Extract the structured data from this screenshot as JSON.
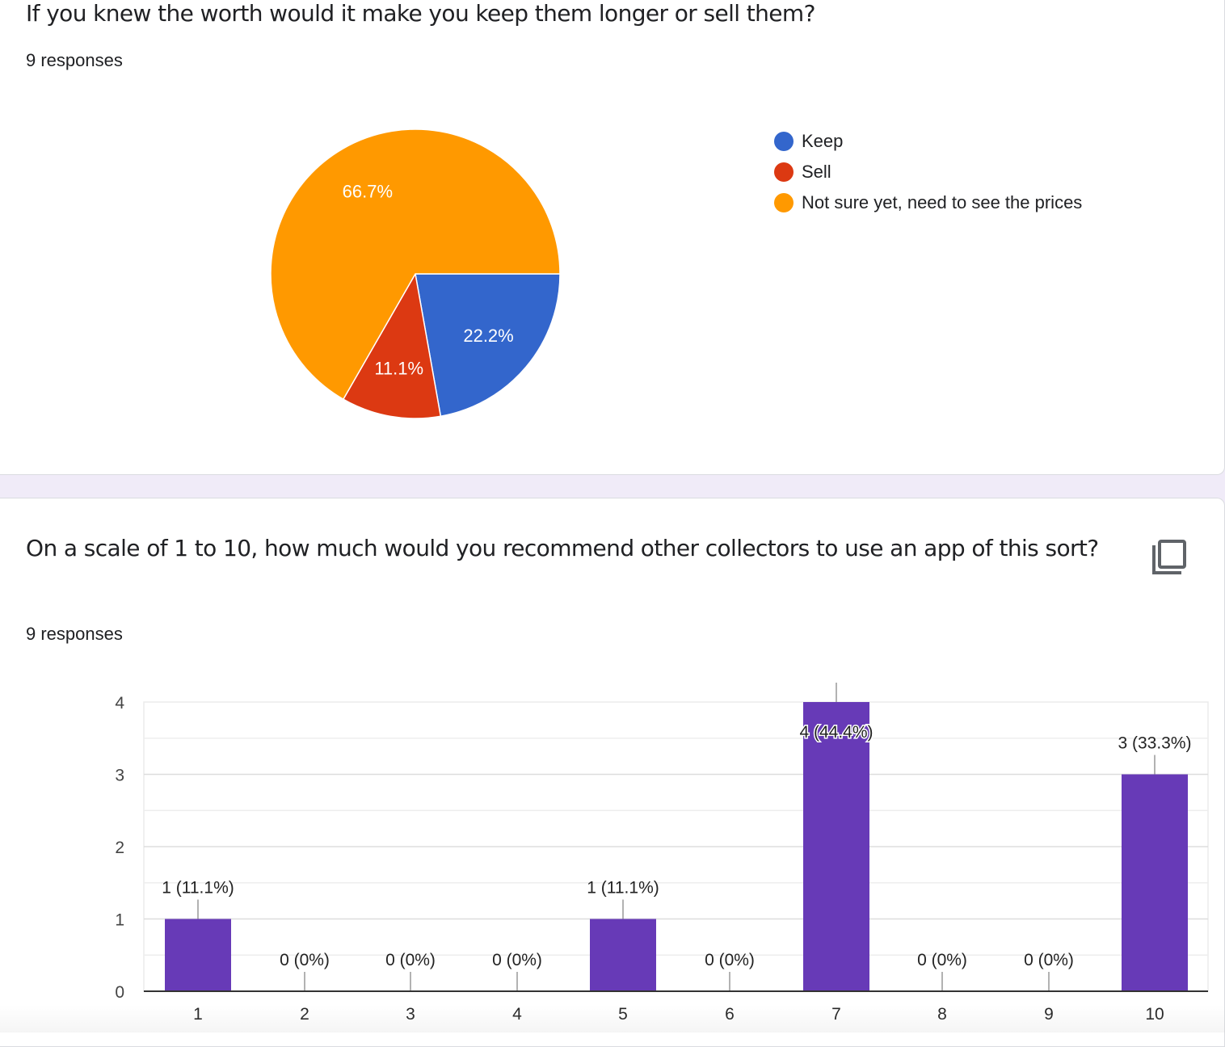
{
  "question1": {
    "title": "If you knew the worth would it make you keep them longer or sell them?",
    "responses": "9 responses"
  },
  "question2": {
    "title": "On a scale of 1 to 10, how much would you recommend other collectors to use an app of this sort?",
    "responses": "9 responses",
    "copy_icon": "copy-icon"
  },
  "chart_data": [
    {
      "type": "pie",
      "slices": [
        {
          "label": "Keep",
          "value": 22.2,
          "color": "#3366cc"
        },
        {
          "label": "Sell",
          "value": 11.1,
          "color": "#dc3912"
        },
        {
          "label": "Not sure yet, need to see the prices",
          "value": 66.7,
          "color": "#ff9900"
        }
      ],
      "slice_labels": [
        "22.2%",
        "11.1%",
        "66.7%"
      ],
      "legend_position": "right"
    },
    {
      "type": "bar",
      "categories": [
        "1",
        "2",
        "3",
        "4",
        "5",
        "6",
        "7",
        "8",
        "9",
        "10"
      ],
      "values": [
        1,
        0,
        0,
        0,
        1,
        0,
        4,
        0,
        0,
        3
      ],
      "data_labels": [
        "1 (11.1%)",
        "0 (0%)",
        "0 (0%)",
        "0 (0%)",
        "1 (11.1%)",
        "0 (0%)",
        "4 (44.4%)",
        "0 (0%)",
        "0 (0%)",
        "3 (33.3%)"
      ],
      "yticks": [
        "0",
        "1",
        "2",
        "3",
        "4"
      ],
      "ylim": [
        0,
        4
      ],
      "grid": true,
      "bar_color": "#673ab7"
    }
  ]
}
